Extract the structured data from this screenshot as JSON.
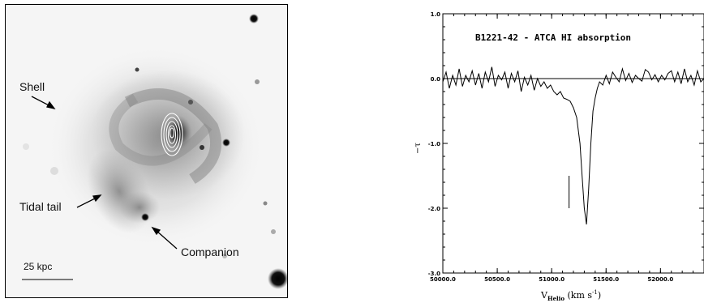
{
  "figure": {
    "left_panel": {
      "labels": {
        "shell": "Shell",
        "tidal_tail": "Tidal tail",
        "companion": "Companion",
        "scale_bar": "25 kpc"
      }
    },
    "right_panel": {
      "title": "B1221-42 - ATCA HI absorption",
      "ylabel": "−τ",
      "xlabel_main": "V",
      "xlabel_sub": "Helio",
      "xlabel_units": " (km s",
      "xlabel_sup": "-1",
      "xlabel_close": ")"
    }
  },
  "chart_data": {
    "type": "line",
    "title": "B1221-42 - ATCA HI absorption",
    "xlabel": "VHelio (km s-1)",
    "ylabel": "−τ",
    "xlim": [
      50000,
      52400
    ],
    "ylim": [
      -3.0,
      1.0
    ],
    "x_ticks": [
      50000.0,
      50500.0,
      51000.0,
      51500.0,
      52000.0
    ],
    "x_tick_labels": [
      "50000.0",
      "50500.0",
      "51000.0",
      "51500.0",
      "52000.0"
    ],
    "y_ticks": [
      1.0,
      0.0,
      -1.0,
      -2.0,
      -3.0
    ],
    "y_tick_labels": [
      "1.0",
      "0.0",
      "-1.0",
      "-2.0",
      "-3.0"
    ],
    "reference_line_y": 0.0,
    "marker": {
      "x": 51160,
      "y_range": [
        -1.5,
        -2.0
      ]
    },
    "series": [
      {
        "x": [
          50000,
          50030,
          50060,
          50090,
          50120,
          50150,
          50180,
          50210,
          50240,
          50270,
          50300,
          50330,
          50360,
          50390,
          50420,
          50450,
          50480,
          50510,
          50540,
          50570,
          50600,
          50630,
          50660,
          50690,
          50720,
          50750,
          50780,
          50810,
          50840,
          50870,
          50900,
          50930,
          50960,
          50990,
          51020,
          51050,
          51080,
          51110,
          51140,
          51170,
          51200,
          51230,
          51260,
          51280,
          51300,
          51320,
          51340,
          51360,
          51380,
          51400,
          51420,
          51440,
          51470,
          51500,
          51530,
          51560,
          51590,
          51620,
          51650,
          51680,
          51710,
          51740,
          51770,
          51800,
          51830,
          51860,
          51890,
          51920,
          51950,
          51980,
          52010,
          52040,
          52070,
          52100,
          52130,
          52160,
          52190,
          52220,
          52250,
          52280,
          52310,
          52340,
          52370,
          52400
        ],
        "y": [
          -0.05,
          0.1,
          -0.15,
          0.05,
          -0.1,
          0.15,
          -0.12,
          0.05,
          -0.05,
          0.12,
          -0.1,
          0.08,
          -0.15,
          0.1,
          -0.05,
          0.18,
          -0.12,
          0.05,
          -0.02,
          0.1,
          -0.15,
          0.08,
          -0.05,
          0.12,
          -0.2,
          0.02,
          -0.1,
          0.05,
          -0.18,
          0.0,
          -0.12,
          -0.05,
          -0.15,
          -0.1,
          -0.2,
          -0.25,
          -0.2,
          -0.3,
          -0.32,
          -0.35,
          -0.45,
          -0.6,
          -1.0,
          -1.5,
          -2.0,
          -2.25,
          -1.7,
          -1.0,
          -0.5,
          -0.3,
          -0.15,
          -0.05,
          -0.1,
          0.05,
          -0.08,
          0.1,
          0.02,
          -0.05,
          0.15,
          -0.03,
          0.08,
          -0.06,
          0.05,
          0.0,
          -0.04,
          0.14,
          0.1,
          -0.02,
          0.06,
          -0.05,
          0.05,
          -0.02,
          0.08,
          0.12,
          -0.05,
          0.1,
          -0.08,
          0.15,
          -0.05,
          0.05,
          -0.1,
          0.12,
          -0.05,
          0.0
        ]
      }
    ]
  }
}
